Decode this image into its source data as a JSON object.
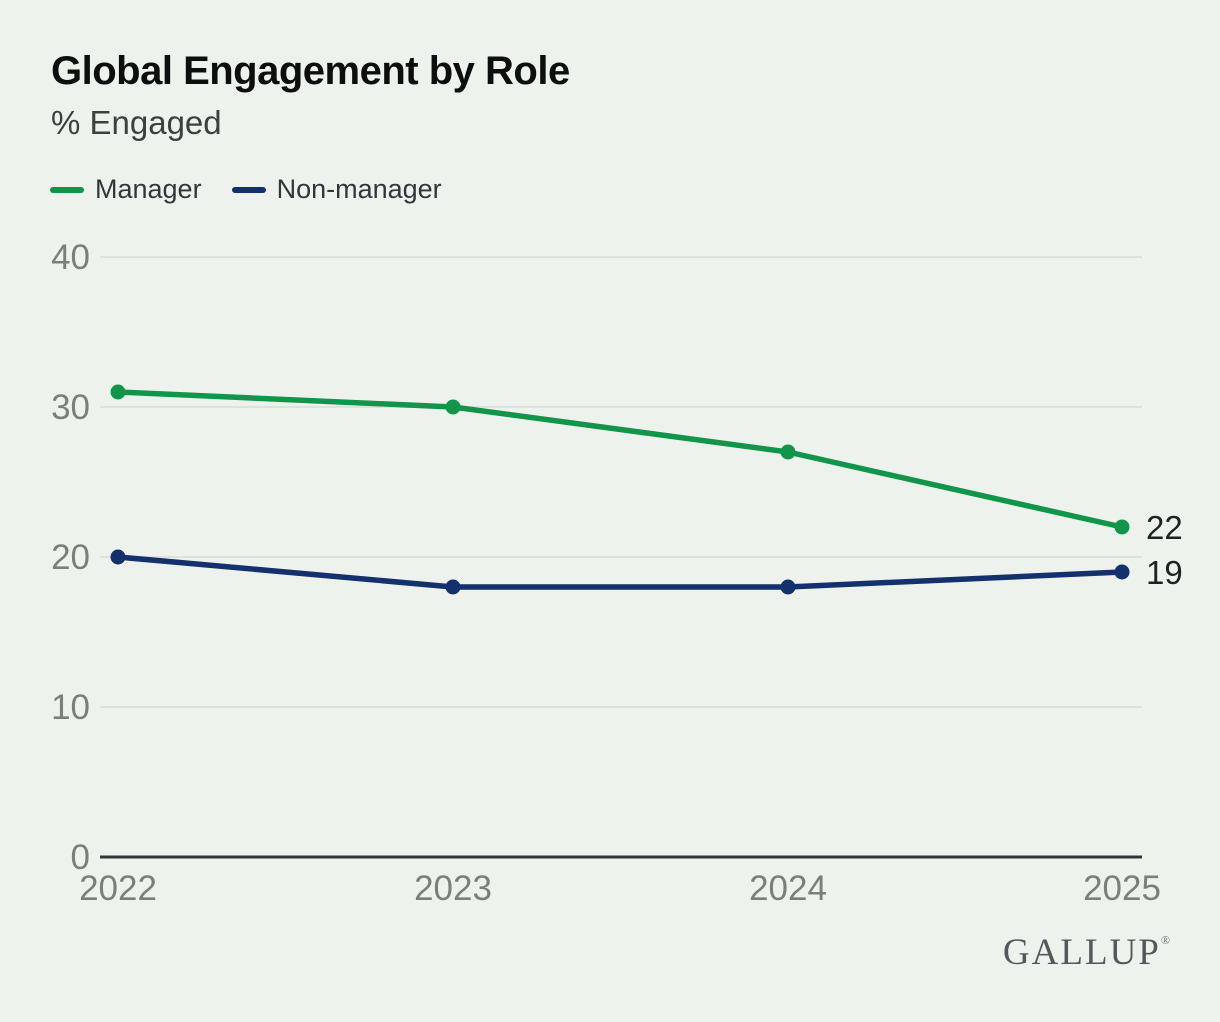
{
  "page": {
    "background_color": "#edf3ec"
  },
  "header": {
    "title": "Global Engagement by Role",
    "subtitle": "% Engaged"
  },
  "legend": {
    "items": [
      {
        "label": "Manager",
        "color": "#10954a"
      },
      {
        "label": "Non-manager",
        "color": "#14306d"
      }
    ],
    "position": "top-left"
  },
  "chart_data": {
    "type": "line",
    "title": "Global Engagement by Role",
    "ylabel": "% Engaged",
    "x": [
      2022,
      2023,
      2024,
      2025
    ],
    "series": [
      {
        "name": "Manager",
        "color": "#10954a",
        "values": [
          31,
          30,
          27,
          22
        ],
        "end_label": "22"
      },
      {
        "name": "Non-manager",
        "color": "#14306d",
        "values": [
          20,
          18,
          18,
          19
        ],
        "end_label": "19"
      }
    ],
    "ylim": [
      0,
      40
    ],
    "yticks": [
      0,
      10,
      20,
      30,
      40
    ],
    "grid": true,
    "gridline_color": "#dfe2da",
    "axis_color": "#303538",
    "legend_position": "top-left"
  },
  "footer": {
    "brand": "GALLUP",
    "registered_mark": "®"
  }
}
